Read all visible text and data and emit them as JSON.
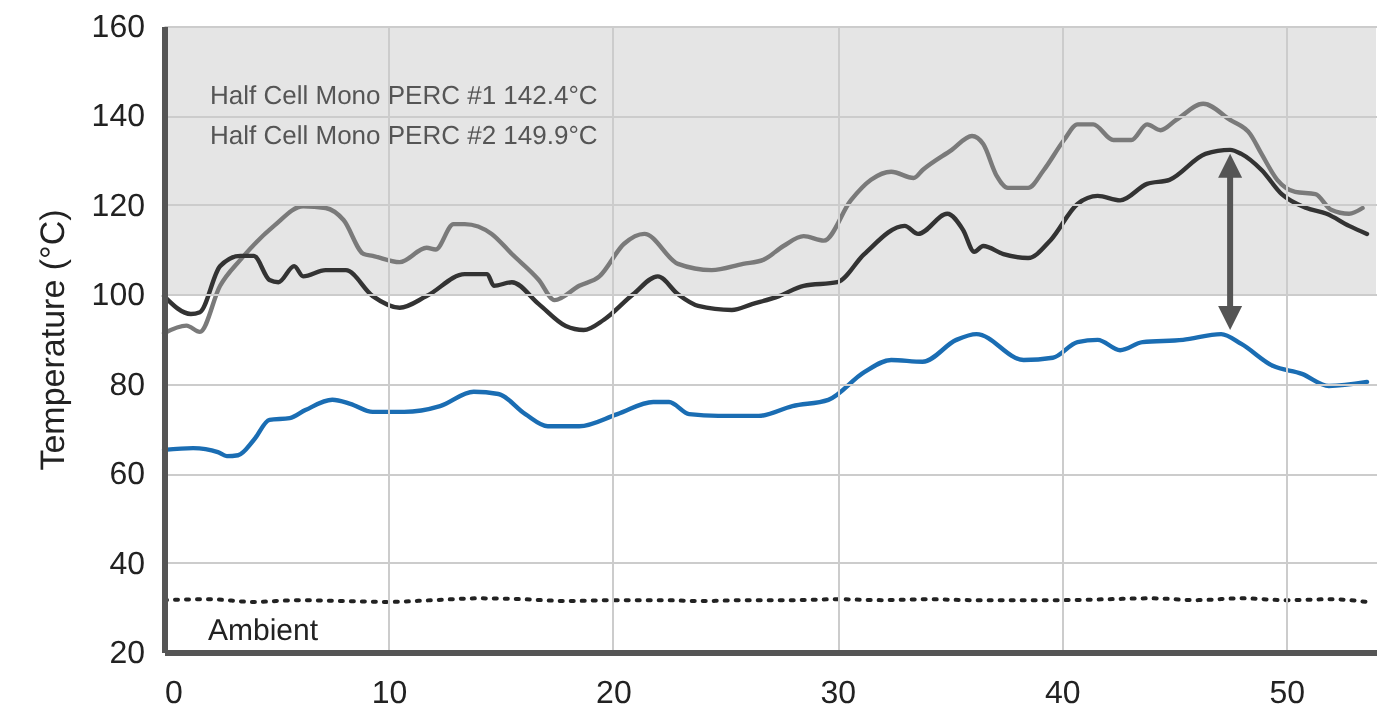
{
  "chart_data": {
    "type": "line",
    "ylabel": "Temperature (°C)",
    "xlim": [
      0,
      54
    ],
    "ylim": [
      20,
      160
    ],
    "xticks": [
      0,
      10,
      20,
      30,
      40,
      50
    ],
    "yticks": [
      20,
      40,
      60,
      80,
      100,
      120,
      140,
      160
    ],
    "grid": true,
    "annotations": [
      "Half Cell Mono PERC #1 142.4°C",
      "Half Cell Mono PERC #2 149.9°C"
    ],
    "bands": [
      {
        "axis": "y",
        "from": 100,
        "to": 160,
        "color": "#e5e5e5"
      }
    ],
    "series": [
      {
        "color": "#7a7a7a",
        "x": [
          0,
          1,
          1.6,
          2.5,
          3.4,
          4.9,
          6.2,
          7.2,
          8,
          8.9,
          9.3,
          10.5,
          11.7,
          12.1,
          12.9,
          13.4,
          14.6,
          15.5,
          16.7,
          17.4,
          18.5,
          19.4,
          20.5,
          21.4,
          22.9,
          24.4,
          25.8,
          26.7,
          27.6,
          28.5,
          29.4,
          30.6,
          31.5,
          32.4,
          33.4,
          33.8,
          35.1,
          36,
          36.5,
          37.1,
          37.6,
          38.5,
          39.2,
          40.1,
          40.7,
          41.4,
          42.3,
          43.1,
          43.8,
          44.4,
          45.1,
          46.3,
          47.5,
          48.4,
          48.9,
          49.6,
          50.4,
          51.3,
          52,
          52.8,
          53.4
        ],
        "values": [
          91.3,
          93,
          91.6,
          101.9,
          107.7,
          115.3,
          119.7,
          119.3,
          116.6,
          109,
          108.6,
          107.2,
          110.4,
          110,
          115.7,
          115.7,
          113.5,
          109,
          103.2,
          98.7,
          101.9,
          104,
          111.3,
          113.5,
          106.8,
          105.4,
          106.8,
          107.7,
          110.8,
          113,
          112,
          121,
          125.6,
          127.4,
          126,
          127.8,
          132.3,
          135.4,
          133.6,
          126.5,
          123.8,
          123.8,
          127.8,
          134.5,
          138,
          138,
          134.5,
          134.5,
          138,
          136.7,
          139,
          142.6,
          139,
          135.8,
          131.4,
          125.6,
          122.9,
          122.4,
          118.9,
          118,
          119.3
        ]
      },
      {
        "color": "#333333",
        "x": [
          0,
          1.2,
          1.6,
          2.5,
          3.4,
          4,
          4.7,
          5.1,
          5.8,
          6.2,
          7.2,
          8.1,
          9.3,
          10.5,
          11.7,
          13.4,
          14.4,
          14.7,
          15.5,
          16.7,
          17.9,
          18.7,
          19.6,
          20.9,
          22,
          22.9,
          23.8,
          25.3,
          26.2,
          27.4,
          28.5,
          30,
          31.2,
          33,
          33.6,
          34.9,
          35.6,
          36.1,
          36.5,
          37.4,
          38.5,
          39.5,
          40.7,
          41.6,
          42.6,
          43.8,
          44.8,
          46.4,
          47.5,
          48,
          48.9,
          49.8,
          50.9,
          51.8,
          52.8,
          53.6
        ],
        "values": [
          99.6,
          95.6,
          96,
          106.3,
          108.6,
          108.6,
          103.2,
          102.7,
          106.3,
          104,
          105.4,
          105.4,
          99.6,
          97,
          99.6,
          104.5,
          104.5,
          101.9,
          102.7,
          97.8,
          92.9,
          92,
          94.3,
          100,
          104,
          100,
          97.4,
          96.5,
          97.8,
          99.6,
          101.9,
          102.7,
          109,
          115.3,
          113.5,
          118,
          114.4,
          109.5,
          110.8,
          109,
          108.1,
          112.1,
          120.2,
          122,
          121,
          124.7,
          125.6,
          131.4,
          132.3,
          131.4,
          127.8,
          122.4,
          119.3,
          118,
          115.3,
          113.5
        ]
      },
      {
        "color": "#1a6db3",
        "x": [
          0,
          1.3,
          2.4,
          2.8,
          3.3,
          4,
          4.7,
          5.6,
          6.3,
          7.5,
          8.3,
          9.3,
          10.7,
          12.3,
          13.8,
          14.9,
          16.1,
          17.1,
          18.5,
          20.2,
          21.8,
          22.5,
          23.4,
          24.7,
          26.5,
          28,
          29.6,
          31.2,
          32.4,
          33.8,
          35.3,
          36.2,
          38.3,
          39.6,
          40.7,
          41.6,
          42.6,
          43.6,
          45.4,
          47.1,
          48,
          49.4,
          50.7,
          51.9,
          53.6
        ],
        "values": [
          65.2,
          65.6,
          64.7,
          63.8,
          64,
          67.4,
          71.9,
          72.3,
          74.1,
          76.4,
          75.5,
          73.7,
          73.7,
          75,
          78.2,
          77.7,
          73.2,
          70.5,
          70.5,
          73.2,
          75.9,
          75.9,
          73.2,
          72.8,
          72.8,
          75,
          76.4,
          82.6,
          85.3,
          84.9,
          89.8,
          91.1,
          85.3,
          85.8,
          89.3,
          89.8,
          87.5,
          89.3,
          89.8,
          91.1,
          88.9,
          84,
          82.2,
          79.5,
          80.4
        ]
      },
      {
        "name": "Ambient",
        "color": "#222222",
        "line_style": "dotted",
        "x": [
          0,
          2,
          4,
          6,
          8,
          10,
          12,
          14,
          16,
          18,
          20,
          22,
          24,
          26,
          28,
          30,
          32,
          34,
          36,
          38,
          40,
          42,
          44,
          46,
          48,
          50,
          52,
          53.6
        ],
        "values": [
          31.6,
          31.8,
          31.2,
          31.6,
          31.4,
          31.2,
          31.6,
          32,
          31.8,
          31.4,
          31.6,
          31.6,
          31.4,
          31.6,
          31.6,
          31.8,
          31.6,
          31.8,
          31.6,
          31.6,
          31.6,
          31.8,
          32,
          31.6,
          32,
          31.6,
          31.8,
          31.2
        ]
      }
    ]
  }
}
